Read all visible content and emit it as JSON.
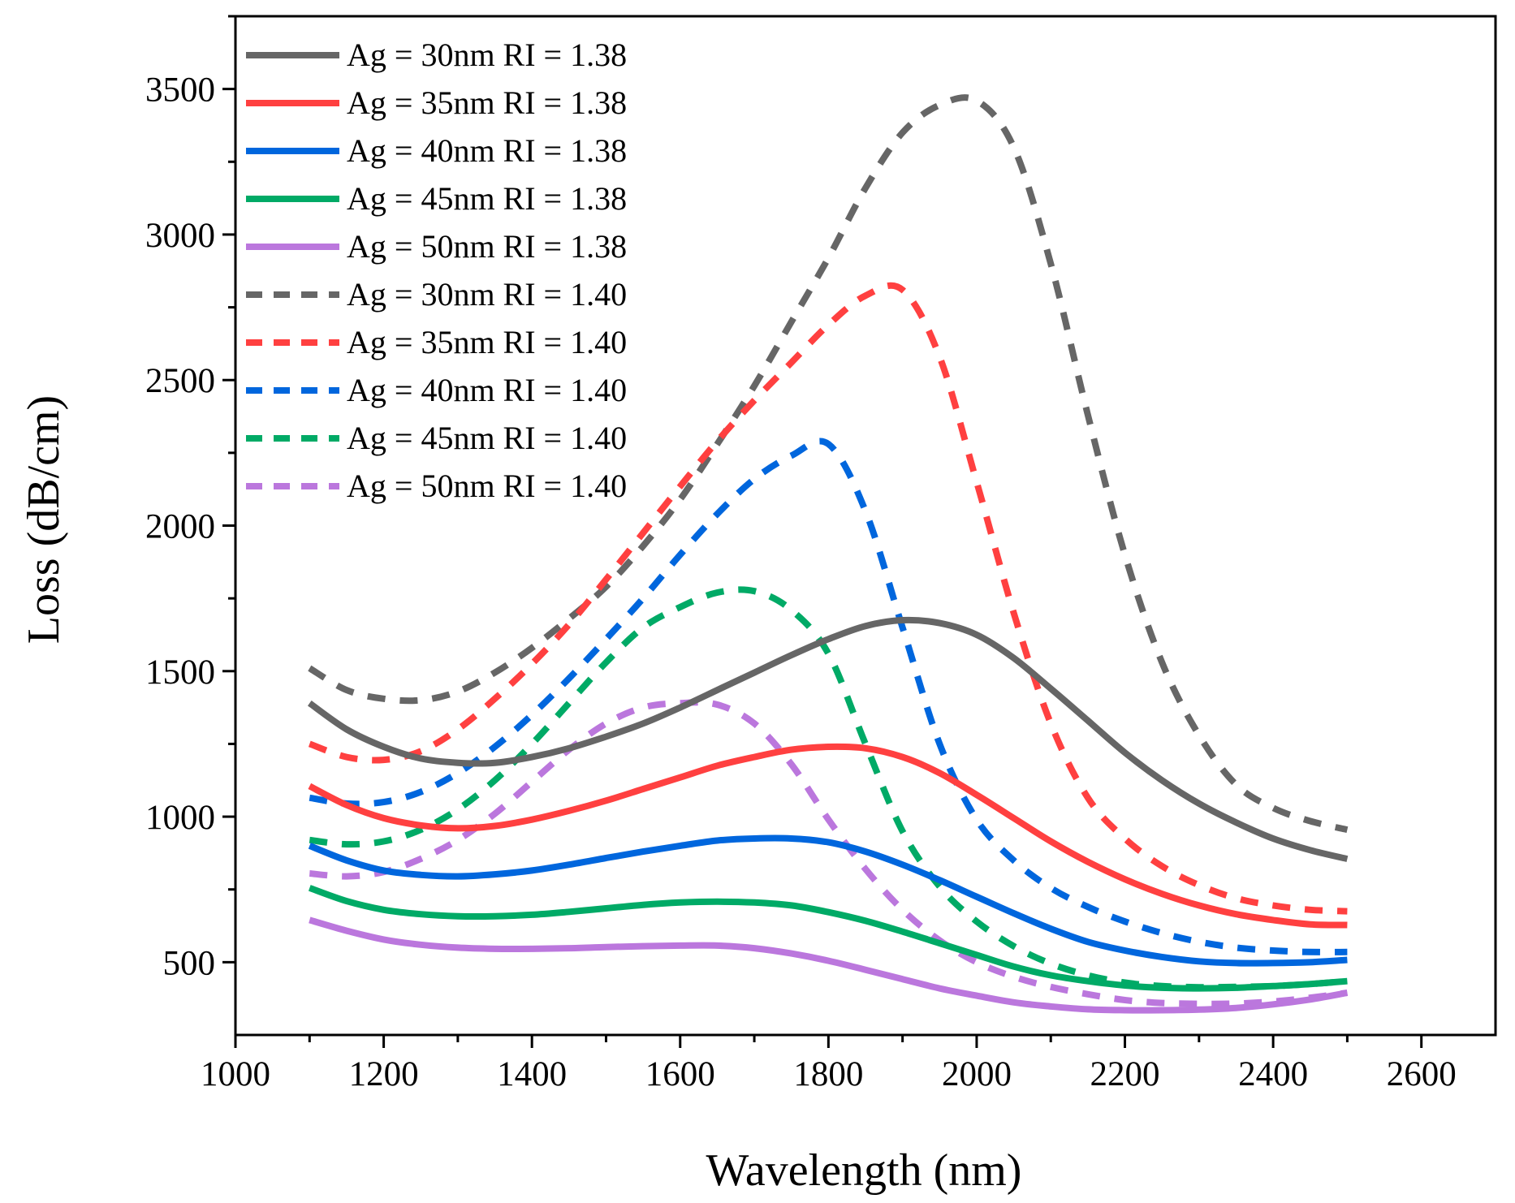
{
  "chart_data": {
    "type": "line",
    "title": "",
    "xlabel": "Wavelength (nm)",
    "ylabel": "Loss (dB/cm)",
    "xlim": [
      1000,
      2700
    ],
    "ylim": [
      250,
      3750
    ],
    "xticks": [
      1000,
      1200,
      1400,
      1600,
      1800,
      2000,
      2200,
      2400,
      2600
    ],
    "yticks": [
      500,
      1000,
      1500,
      2000,
      2500,
      3000,
      3500
    ],
    "grid": false,
    "legend_position": "top-left",
    "x": [
      1100,
      1150,
      1200,
      1250,
      1300,
      1350,
      1400,
      1450,
      1500,
      1550,
      1600,
      1650,
      1700,
      1750,
      1800,
      1850,
      1900,
      1950,
      2000,
      2050,
      2100,
      2150,
      2200,
      2250,
      2300,
      2350,
      2400,
      2450,
      2500
    ],
    "series": [
      {
        "name": "Ag = 30nm RI = 1.38",
        "color": "#666666",
        "dash": "solid",
        "values": [
          1390,
          1300,
          1240,
          1200,
          1185,
          1185,
          1205,
          1235,
          1275,
          1320,
          1375,
          1435,
          1495,
          1555,
          1610,
          1655,
          1675,
          1665,
          1625,
          1545,
          1440,
          1330,
          1220,
          1125,
          1045,
          980,
          925,
          885,
          855
        ]
      },
      {
        "name": "Ag = 35nm RI = 1.38",
        "color": "#ff4040",
        "dash": "solid",
        "values": [
          1105,
          1040,
          995,
          970,
          960,
          968,
          990,
          1020,
          1055,
          1095,
          1135,
          1175,
          1205,
          1230,
          1240,
          1235,
          1205,
          1150,
          1075,
          995,
          915,
          845,
          785,
          735,
          695,
          665,
          645,
          630,
          628
        ]
      },
      {
        "name": "Ag = 40nm RI = 1.38",
        "color": "#0066dd",
        "dash": "solid",
        "values": [
          900,
          850,
          815,
          800,
          795,
          802,
          815,
          835,
          858,
          880,
          900,
          918,
          925,
          925,
          912,
          880,
          835,
          782,
          725,
          668,
          615,
          570,
          540,
          518,
          503,
          497,
          497,
          500,
          508
        ]
      },
      {
        "name": "Ag = 45nm RI = 1.38",
        "color": "#00aa66",
        "dash": "solid",
        "values": [
          755,
          710,
          680,
          665,
          658,
          658,
          663,
          673,
          685,
          697,
          705,
          708,
          705,
          695,
          672,
          642,
          605,
          565,
          525,
          485,
          455,
          435,
          420,
          412,
          410,
          412,
          418,
          425,
          435
        ]
      },
      {
        "name": "Ag = 50nm RI = 1.38",
        "color": "#bb77dd",
        "dash": "solid",
        "values": [
          645,
          608,
          578,
          560,
          550,
          546,
          546,
          548,
          552,
          555,
          557,
          557,
          548,
          530,
          505,
          474,
          442,
          410,
          385,
          362,
          348,
          338,
          335,
          335,
          337,
          343,
          355,
          372,
          395
        ]
      },
      {
        "name": "Ag = 30nm RI = 1.40",
        "color": "#666666",
        "dash": "dashed",
        "values": [
          1510,
          1435,
          1405,
          1400,
          1430,
          1495,
          1580,
          1680,
          1790,
          1930,
          2090,
          2280,
          2480,
          2700,
          2920,
          3160,
          3350,
          3445,
          3460,
          3300,
          2900,
          2380,
          1900,
          1530,
          1280,
          1110,
          1030,
          985,
          955
        ]
      },
      {
        "name": "Ag = 35nm RI = 1.40",
        "color": "#ff4040",
        "dash": "dashed",
        "values": [
          1250,
          1205,
          1195,
          1225,
          1300,
          1405,
          1525,
          1660,
          1815,
          1975,
          2135,
          2290,
          2430,
          2560,
          2690,
          2790,
          2810,
          2580,
          2150,
          1700,
          1320,
          1065,
          925,
          830,
          765,
          720,
          695,
          680,
          675
        ]
      },
      {
        "name": "Ag = 40nm RI = 1.40",
        "color": "#0066dd",
        "dash": "dashed",
        "values": [
          1065,
          1045,
          1050,
          1085,
          1150,
          1240,
          1350,
          1475,
          1610,
          1750,
          1900,
          2040,
          2160,
          2240,
          2280,
          2050,
          1650,
          1250,
          990,
          850,
          755,
          690,
          640,
          600,
          570,
          550,
          540,
          535,
          535
        ]
      },
      {
        "name": "Ag = 45nm RI = 1.40",
        "color": "#00aa66",
        "dash": "dashed",
        "values": [
          920,
          905,
          915,
          955,
          1025,
          1125,
          1250,
          1390,
          1530,
          1650,
          1720,
          1770,
          1775,
          1710,
          1560,
          1250,
          950,
          760,
          640,
          555,
          495,
          455,
          430,
          418,
          414,
          415,
          418,
          425,
          435
        ]
      },
      {
        "name": "Ag = 50nm RI = 1.40",
        "color": "#bb77dd",
        "dash": "dashed",
        "values": [
          805,
          795,
          810,
          855,
          920,
          1010,
          1120,
          1230,
          1320,
          1375,
          1390,
          1385,
          1320,
          1180,
          990,
          820,
          680,
          575,
          500,
          450,
          415,
          390,
          370,
          360,
          357,
          358,
          365,
          378,
          395
        ]
      }
    ]
  }
}
